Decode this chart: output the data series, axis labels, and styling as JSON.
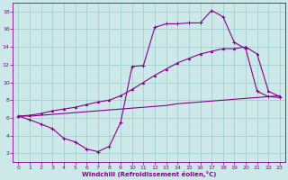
{
  "xlabel": "Windchill (Refroidissement éolien,°C)",
  "xlim": [
    -0.5,
    23.5
  ],
  "ylim": [
    1,
    19
  ],
  "xticks": [
    0,
    1,
    2,
    3,
    4,
    5,
    6,
    7,
    8,
    9,
    10,
    11,
    12,
    13,
    14,
    15,
    16,
    17,
    18,
    19,
    20,
    21,
    22,
    23
  ],
  "yticks": [
    2,
    4,
    6,
    8,
    10,
    12,
    14,
    16,
    18
  ],
  "background_color": "#cce8e8",
  "grid_color": "#99cccc",
  "line_color": "#880088",
  "curve_spike_x": [
    0,
    1,
    2,
    3,
    4,
    5,
    6,
    7,
    8,
    9,
    10,
    11,
    12,
    13,
    14,
    15,
    16,
    17,
    18,
    19,
    20,
    21,
    22,
    23
  ],
  "curve_spike_y": [
    6.2,
    5.8,
    5.3,
    4.8,
    3.7,
    3.3,
    2.5,
    2.2,
    2.8,
    5.5,
    11.8,
    11.9,
    16.2,
    16.6,
    16.6,
    16.7,
    16.7,
    18.1,
    17.4,
    14.5,
    13.8,
    9.0,
    8.4,
    8.3
  ],
  "curve_mid_x": [
    0,
    1,
    2,
    3,
    4,
    5,
    6,
    7,
    8,
    9,
    10,
    11,
    12,
    13,
    14,
    15,
    16,
    17,
    18,
    19,
    20,
    21,
    22,
    23
  ],
  "curve_mid_y": [
    6.2,
    6.3,
    6.5,
    6.8,
    7.0,
    7.2,
    7.5,
    7.8,
    8.0,
    8.5,
    9.2,
    10.0,
    10.8,
    11.5,
    12.2,
    12.7,
    13.2,
    13.5,
    13.8,
    13.8,
    14.0,
    13.2,
    9.0,
    8.4
  ],
  "curve_flat_x": [
    0,
    1,
    2,
    3,
    4,
    5,
    6,
    7,
    8,
    9,
    10,
    11,
    12,
    13,
    14,
    15,
    16,
    17,
    18,
    19,
    20,
    21,
    22,
    23
  ],
  "curve_flat_y": [
    6.2,
    6.2,
    6.3,
    6.4,
    6.5,
    6.6,
    6.7,
    6.8,
    6.9,
    7.0,
    7.1,
    7.2,
    7.3,
    7.4,
    7.6,
    7.7,
    7.8,
    7.9,
    8.0,
    8.1,
    8.2,
    8.3,
    8.4,
    8.5
  ]
}
